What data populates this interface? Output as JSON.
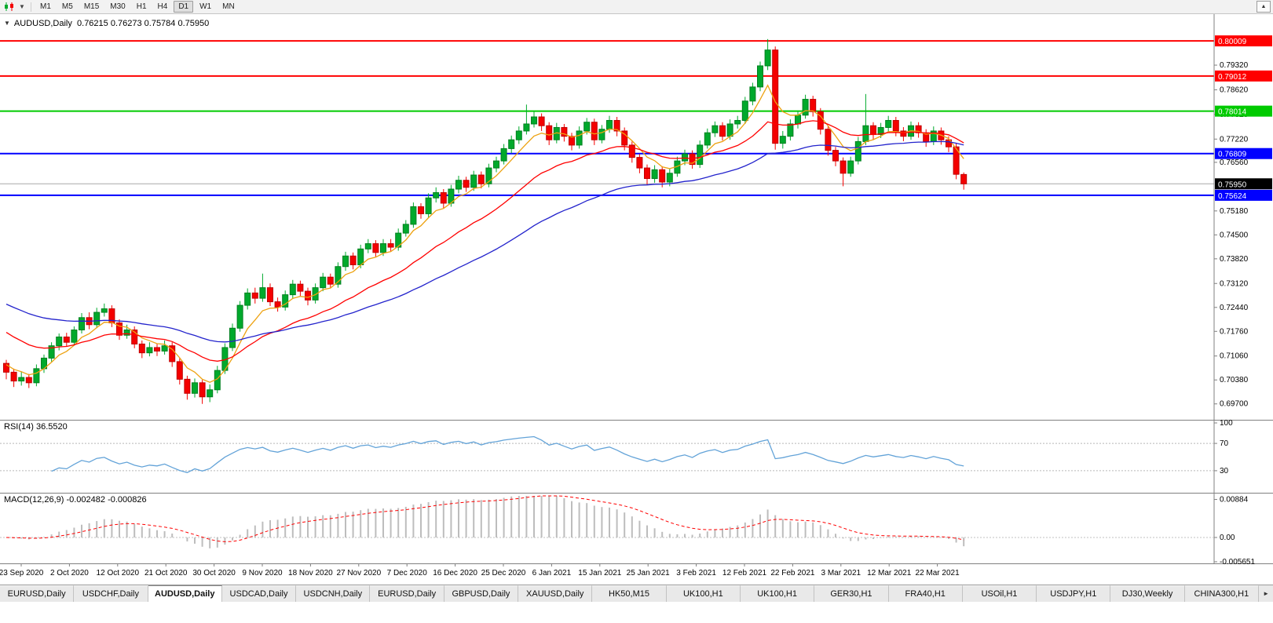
{
  "toolbar": {
    "timeframes": [
      "M1",
      "M5",
      "M15",
      "M30",
      "H1",
      "H4",
      "D1",
      "W1",
      "MN"
    ],
    "active_timeframe": "D1",
    "chart_type_icon": "candlestick-chart-icon",
    "caret_glyph": "▼",
    "right_icon_glyph": "▲"
  },
  "chart_data": {
    "type": "candlestick",
    "symbol": "AUDUSD,Daily",
    "ohlc_display": "0.76215 0.76273 0.75784 0.75950",
    "collapse_glyph": "▼",
    "ylim": [
      0.6936,
      0.8068
    ],
    "y_ticks": [
      "0.79320",
      "0.78620",
      "0.77920",
      "0.77220",
      "0.76560",
      "0.75180",
      "0.74500",
      "0.73820",
      "0.73120",
      "0.72440",
      "0.71760",
      "0.71060",
      "0.70380",
      "0.69700"
    ],
    "x_dates": [
      "23 Sep 2020",
      "2 Oct 2020",
      "12 Oct 2020",
      "21 Oct 2020",
      "30 Oct 2020",
      "9 Nov 2020",
      "18 Nov 2020",
      "27 Nov 2020",
      "7 Dec 2020",
      "16 Dec 2020",
      "25 Dec 2020",
      "6 Jan 2021",
      "15 Jan 2021",
      "25 Jan 2021",
      "3 Feb 2021",
      "12 Feb 2021",
      "22 Feb 2021",
      "3 Mar 2021",
      "12 Mar 2021",
      "22 Mar 2021"
    ],
    "colors": {
      "up": "#00a92c",
      "up_border": "#00801f",
      "down": "#f40000",
      "down_border": "#c00000",
      "axis": "#808080",
      "current_line": "#a8a8a8"
    },
    "hlines": [
      {
        "price": 0.80009,
        "label": "0.80009",
        "color": "#ff0000"
      },
      {
        "price": 0.79012,
        "label": "0.79012",
        "color": "#ff0000"
      },
      {
        "price": 0.78014,
        "label": "0.78014",
        "color": "#00ca00"
      },
      {
        "price": 0.76809,
        "label": "0.76809",
        "color": "#0000ff"
      },
      {
        "price": 0.75624,
        "label": "0.75624",
        "color": "#0000ff"
      }
    ],
    "current_price": {
      "value": 0.7595,
      "label": "0.75950",
      "badge_color": "#000000"
    },
    "moving_averages": [
      {
        "period": 6,
        "seed": 0.709,
        "color": "#eda211",
        "name": "fast-ma"
      },
      {
        "period": 20,
        "seed": 0.7185,
        "color": "#ff0000",
        "name": "medium-ma"
      },
      {
        "period": 45,
        "seed": 0.7262,
        "color": "#2323cc",
        "name": "slow-ma"
      }
    ],
    "candles": [
      [
        0.7085,
        0.7095,
        0.704,
        0.706
      ],
      [
        0.706,
        0.707,
        0.7018,
        0.7035
      ],
      [
        0.7035,
        0.7062,
        0.7022,
        0.7045
      ],
      [
        0.7045,
        0.7055,
        0.7015,
        0.703
      ],
      [
        0.703,
        0.7082,
        0.702,
        0.707
      ],
      [
        0.707,
        0.711,
        0.7058,
        0.71
      ],
      [
        0.71,
        0.7145,
        0.709,
        0.7135
      ],
      [
        0.7135,
        0.717,
        0.7122,
        0.716
      ],
      [
        0.716,
        0.7172,
        0.7132,
        0.7145
      ],
      [
        0.7145,
        0.719,
        0.7135,
        0.718
      ],
      [
        0.718,
        0.7228,
        0.717,
        0.7215
      ],
      [
        0.7215,
        0.723,
        0.7182,
        0.7195
      ],
      [
        0.7195,
        0.7243,
        0.7185,
        0.723
      ],
      [
        0.723,
        0.7255,
        0.7218,
        0.724
      ],
      [
        0.724,
        0.725,
        0.7188,
        0.72
      ],
      [
        0.72,
        0.721,
        0.7152,
        0.7165
      ],
      [
        0.7165,
        0.7195,
        0.7155,
        0.718
      ],
      [
        0.718,
        0.719,
        0.7128,
        0.714
      ],
      [
        0.714,
        0.715,
        0.71,
        0.7115
      ],
      [
        0.7115,
        0.7145,
        0.7105,
        0.713
      ],
      [
        0.713,
        0.7142,
        0.7106,
        0.712
      ],
      [
        0.712,
        0.715,
        0.711,
        0.7135
      ],
      [
        0.7135,
        0.7145,
        0.7075,
        0.709
      ],
      [
        0.709,
        0.71,
        0.7025,
        0.704
      ],
      [
        0.704,
        0.705,
        0.6982,
        0.7
      ],
      [
        0.7,
        0.7042,
        0.6988,
        0.703
      ],
      [
        0.703,
        0.7038,
        0.697,
        0.699
      ],
      [
        0.699,
        0.7025,
        0.6975,
        0.701
      ],
      [
        0.701,
        0.7078,
        0.7,
        0.7065
      ],
      [
        0.7065,
        0.7142,
        0.7055,
        0.713
      ],
      [
        0.713,
        0.7198,
        0.712,
        0.7185
      ],
      [
        0.7185,
        0.7262,
        0.7175,
        0.725
      ],
      [
        0.725,
        0.7298,
        0.7238,
        0.7285
      ],
      [
        0.7285,
        0.73,
        0.7255,
        0.727
      ],
      [
        0.727,
        0.734,
        0.726,
        0.73
      ],
      [
        0.73,
        0.7312,
        0.7248,
        0.726
      ],
      [
        0.726,
        0.7272,
        0.7232,
        0.7245
      ],
      [
        0.7245,
        0.7292,
        0.7235,
        0.728
      ],
      [
        0.728,
        0.7322,
        0.7268,
        0.731
      ],
      [
        0.731,
        0.732,
        0.7275,
        0.729
      ],
      [
        0.729,
        0.73,
        0.725,
        0.7265
      ],
      [
        0.7265,
        0.7312,
        0.7255,
        0.73
      ],
      [
        0.73,
        0.7342,
        0.729,
        0.733
      ],
      [
        0.733,
        0.734,
        0.7298,
        0.731
      ],
      [
        0.731,
        0.7372,
        0.73,
        0.736
      ],
      [
        0.736,
        0.7402,
        0.7348,
        0.739
      ],
      [
        0.739,
        0.74,
        0.7352,
        0.7365
      ],
      [
        0.7365,
        0.7422,
        0.7355,
        0.741
      ],
      [
        0.741,
        0.7438,
        0.7398,
        0.7425
      ],
      [
        0.7425,
        0.7435,
        0.7388,
        0.74
      ],
      [
        0.74,
        0.7438,
        0.739,
        0.7425
      ],
      [
        0.7425,
        0.7438,
        0.7402,
        0.7415
      ],
      [
        0.7415,
        0.7468,
        0.7405,
        0.7455
      ],
      [
        0.7455,
        0.7492,
        0.7445,
        0.748
      ],
      [
        0.748,
        0.7542,
        0.747,
        0.753
      ],
      [
        0.753,
        0.754,
        0.7496,
        0.751
      ],
      [
        0.751,
        0.7568,
        0.75,
        0.7555
      ],
      [
        0.7555,
        0.7585,
        0.7542,
        0.757
      ],
      [
        0.757,
        0.758,
        0.7526,
        0.754
      ],
      [
        0.754,
        0.7592,
        0.753,
        0.758
      ],
      [
        0.758,
        0.7618,
        0.7568,
        0.7605
      ],
      [
        0.7605,
        0.7615,
        0.7572,
        0.7585
      ],
      [
        0.7585,
        0.7632,
        0.7575,
        0.762
      ],
      [
        0.762,
        0.763,
        0.7582,
        0.7595
      ],
      [
        0.7595,
        0.7652,
        0.7585,
        0.764
      ],
      [
        0.764,
        0.7672,
        0.7628,
        0.766
      ],
      [
        0.766,
        0.7708,
        0.765,
        0.7695
      ],
      [
        0.7695,
        0.7732,
        0.7682,
        0.772
      ],
      [
        0.772,
        0.7758,
        0.7708,
        0.7745
      ],
      [
        0.7745,
        0.782,
        0.7735,
        0.7765
      ],
      [
        0.7765,
        0.78,
        0.7755,
        0.7785
      ],
      [
        0.7785,
        0.7795,
        0.7745,
        0.776
      ],
      [
        0.776,
        0.777,
        0.7705,
        0.772
      ],
      [
        0.772,
        0.7768,
        0.771,
        0.7755
      ],
      [
        0.7755,
        0.7765,
        0.7715,
        0.773
      ],
      [
        0.773,
        0.774,
        0.769,
        0.7705
      ],
      [
        0.7705,
        0.7758,
        0.7695,
        0.7745
      ],
      [
        0.7745,
        0.7782,
        0.7735,
        0.777
      ],
      [
        0.777,
        0.778,
        0.7705,
        0.772
      ],
      [
        0.772,
        0.7762,
        0.771,
        0.775
      ],
      [
        0.775,
        0.7788,
        0.774,
        0.7775
      ],
      [
        0.7775,
        0.7785,
        0.773,
        0.7745
      ],
      [
        0.7745,
        0.7755,
        0.769,
        0.7705
      ],
      [
        0.7705,
        0.7715,
        0.7655,
        0.767
      ],
      [
        0.767,
        0.768,
        0.7625,
        0.764
      ],
      [
        0.764,
        0.765,
        0.7592,
        0.761
      ],
      [
        0.761,
        0.7648,
        0.7598,
        0.7635
      ],
      [
        0.7635,
        0.7645,
        0.7585,
        0.76
      ],
      [
        0.76,
        0.7638,
        0.7588,
        0.7625
      ],
      [
        0.7625,
        0.7672,
        0.7615,
        0.766
      ],
      [
        0.766,
        0.7692,
        0.7648,
        0.768
      ],
      [
        0.768,
        0.769,
        0.7638,
        0.765
      ],
      [
        0.765,
        0.7718,
        0.764,
        0.7705
      ],
      [
        0.7705,
        0.7752,
        0.7695,
        0.774
      ],
      [
        0.774,
        0.7772,
        0.7728,
        0.776
      ],
      [
        0.776,
        0.777,
        0.7718,
        0.773
      ],
      [
        0.773,
        0.7778,
        0.772,
        0.7765
      ],
      [
        0.7765,
        0.7788,
        0.7752,
        0.7775
      ],
      [
        0.7775,
        0.7842,
        0.7765,
        0.783
      ],
      [
        0.783,
        0.7882,
        0.7818,
        0.787
      ],
      [
        0.787,
        0.7942,
        0.7858,
        0.793
      ],
      [
        0.793,
        0.8006,
        0.7918,
        0.7975
      ],
      [
        0.7975,
        0.7985,
        0.7692,
        0.771
      ],
      [
        0.771,
        0.7745,
        0.7695,
        0.773
      ],
      [
        0.773,
        0.7778,
        0.7718,
        0.7765
      ],
      [
        0.7765,
        0.7802,
        0.7752,
        0.779
      ],
      [
        0.779,
        0.7848,
        0.778,
        0.7835
      ],
      [
        0.7835,
        0.7845,
        0.7786,
        0.78
      ],
      [
        0.78,
        0.781,
        0.7735,
        0.775
      ],
      [
        0.775,
        0.776,
        0.7675,
        0.769
      ],
      [
        0.769,
        0.77,
        0.7645,
        0.766
      ],
      [
        0.766,
        0.767,
        0.7588,
        0.7625
      ],
      [
        0.7625,
        0.7672,
        0.7615,
        0.766
      ],
      [
        0.766,
        0.7728,
        0.765,
        0.7715
      ],
      [
        0.7715,
        0.785,
        0.7705,
        0.776
      ],
      [
        0.776,
        0.777,
        0.772,
        0.7735
      ],
      [
        0.7735,
        0.7768,
        0.7725,
        0.7755
      ],
      [
        0.7755,
        0.7788,
        0.7742,
        0.7775
      ],
      [
        0.7775,
        0.7785,
        0.773,
        0.7745
      ],
      [
        0.7745,
        0.7756,
        0.7716,
        0.773
      ],
      [
        0.773,
        0.7772,
        0.772,
        0.776
      ],
      [
        0.776,
        0.777,
        0.7726,
        0.774
      ],
      [
        0.774,
        0.775,
        0.77,
        0.7715
      ],
      [
        0.7715,
        0.7758,
        0.7705,
        0.7745
      ],
      [
        0.7745,
        0.7755,
        0.7706,
        0.772
      ],
      [
        0.772,
        0.773,
        0.7685,
        0.77
      ],
      [
        0.77,
        0.771,
        0.7608,
        0.7622
      ],
      [
        0.76215,
        0.76273,
        0.75784,
        0.7595
      ]
    ],
    "rsi": {
      "header": "RSI(14) 36.5520",
      "period": 14,
      "current": 36.552,
      "levels": [
        100,
        70,
        30
      ],
      "level_labels": [
        "100",
        "70",
        "30"
      ],
      "color": "#63a3d8"
    },
    "macd": {
      "header": "MACD(12,26,9) -0.002482 -0.000826",
      "fast": 12,
      "slow": 26,
      "signal": 9,
      "main_value": -0.002482,
      "signal_value": -0.000826,
      "ticks": [
        "0.00884",
        "0.00",
        "-0.005651"
      ],
      "tick_values": [
        0.00884,
        0,
        -0.005651
      ],
      "hist_color": "#bdbdbd",
      "signal_color": "#ff0000"
    }
  },
  "tabs": {
    "items": [
      "EURUSD,Daily",
      "USDCHF,Daily",
      "AUDUSD,Daily",
      "USDCAD,Daily",
      "USDCNH,Daily",
      "EURUSD,Daily",
      "GBPUSD,Daily",
      "XAUUSD,Daily",
      "HK50,M15",
      "UK100,H1",
      "UK100,H1",
      "GER30,H1",
      "FRA40,H1",
      "USOil,H1",
      "USDJPY,H1",
      "DJ30,Weekly",
      "CHINA300,H1"
    ],
    "active_index": 2,
    "scroll_right_glyph": "►"
  }
}
